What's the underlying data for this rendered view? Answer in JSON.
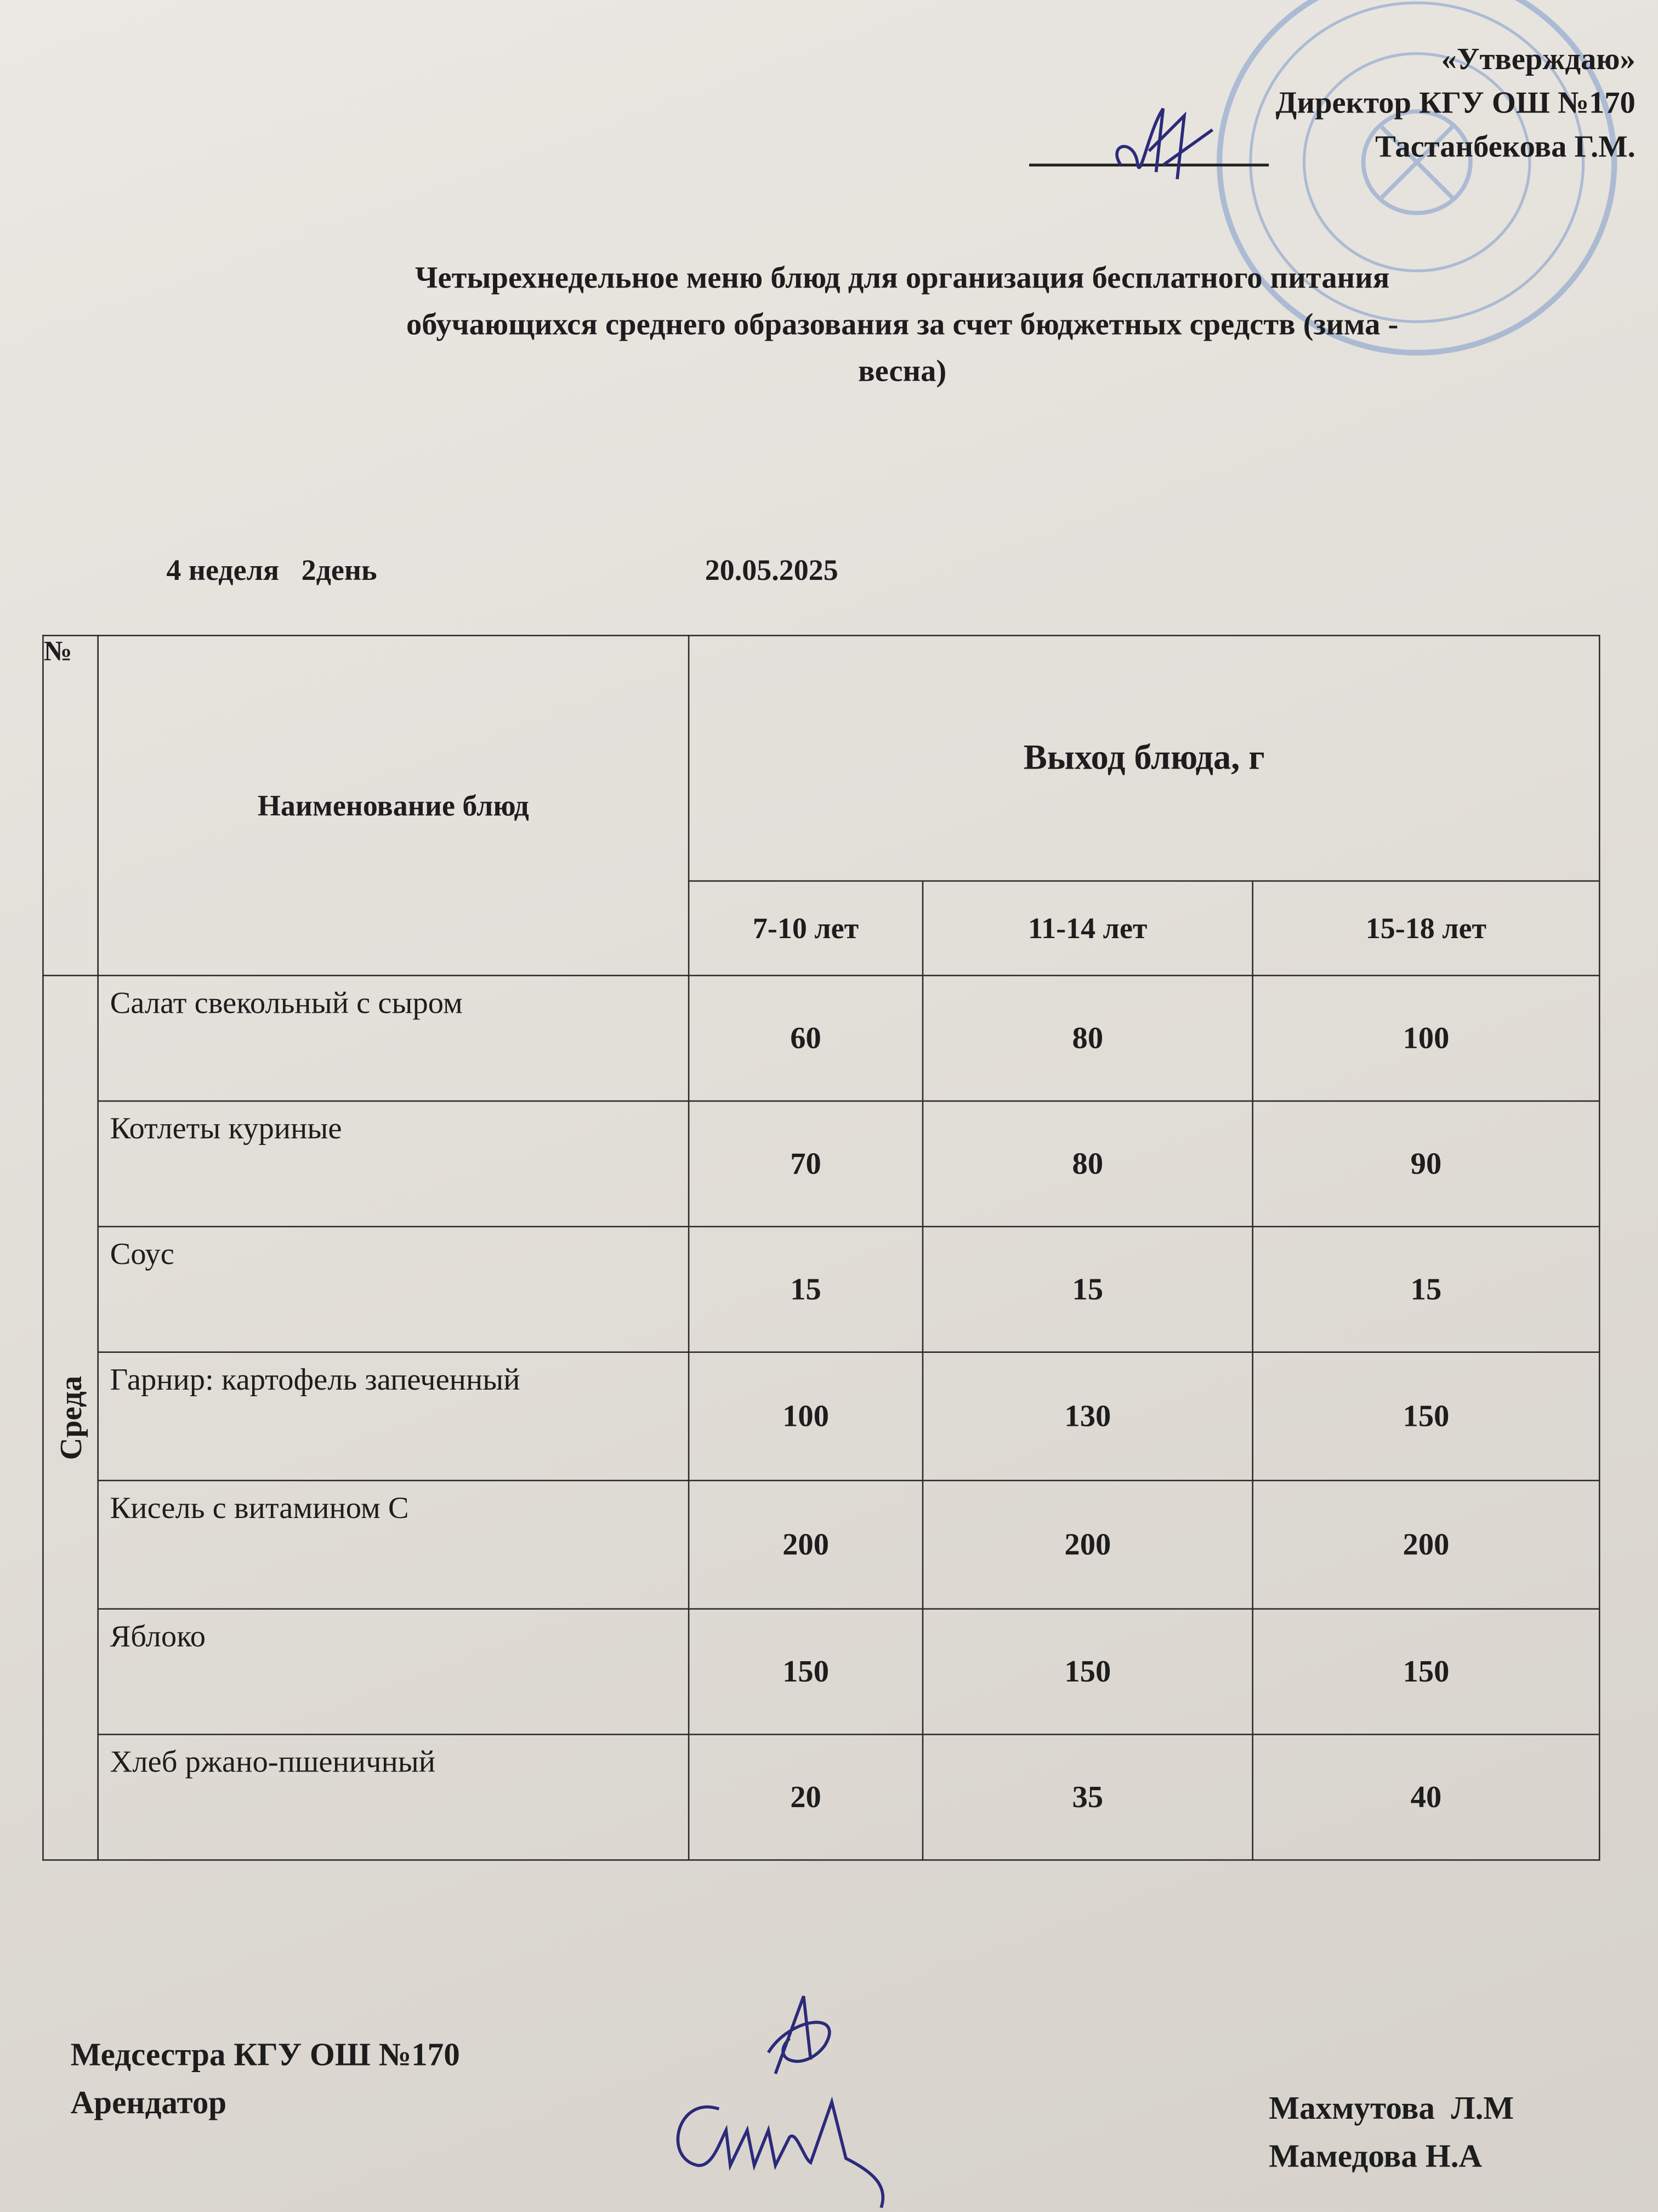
{
  "approval": {
    "heading": "«Утверждаю»",
    "position": "Директор КГУ ОШ №170",
    "name": "Тастанбекова Г.М."
  },
  "title": {
    "line1": "Четырехнедельное меню блюд для организация бесплатного питания",
    "line2": "обучающихся среднего образования за счет бюджетных средств (зима -",
    "line3": "весна)"
  },
  "meta": {
    "week_day": "4 неделя   2день",
    "date": "20.05.2025"
  },
  "table": {
    "num_header": "№",
    "name_header": "Наименование блюд",
    "output_header": "Выход блюда, г",
    "age_groups": [
      "7-10 лет",
      "11-14 лет",
      "15-18 лет"
    ],
    "day_label": "Среда",
    "rows": [
      {
        "name": "Салат свекольный с сыром",
        "values": [
          "60",
          "80",
          "100"
        ]
      },
      {
        "name": "Котлеты куриные",
        "values": [
          "70",
          "80",
          "90"
        ]
      },
      {
        "name": "Соус",
        "values": [
          "15",
          "15",
          "15"
        ]
      },
      {
        "name": "Гарнир:  картофель запеченный",
        "values": [
          "100",
          "130",
          "150"
        ]
      },
      {
        "name": "Кисель с витамином С",
        "values": [
          "200",
          "200",
          "200"
        ]
      },
      {
        "name": "Яблоко",
        "values": [
          "150",
          "150",
          "150"
        ]
      },
      {
        "name": "Хлеб ржано-пшеничный",
        "values": [
          "20",
          "35",
          "40"
        ]
      }
    ]
  },
  "footer": {
    "left_line1": "Медсестра КГУ ОШ №170",
    "left_line2": "Арендатор",
    "right_line1": "Махмутова  Л.М",
    "right_line2": "Мамедова Н.А"
  },
  "colors": {
    "ink": "#1d1d1d",
    "stamp": "#6f8fc4",
    "signature": "#2b2a7a"
  }
}
